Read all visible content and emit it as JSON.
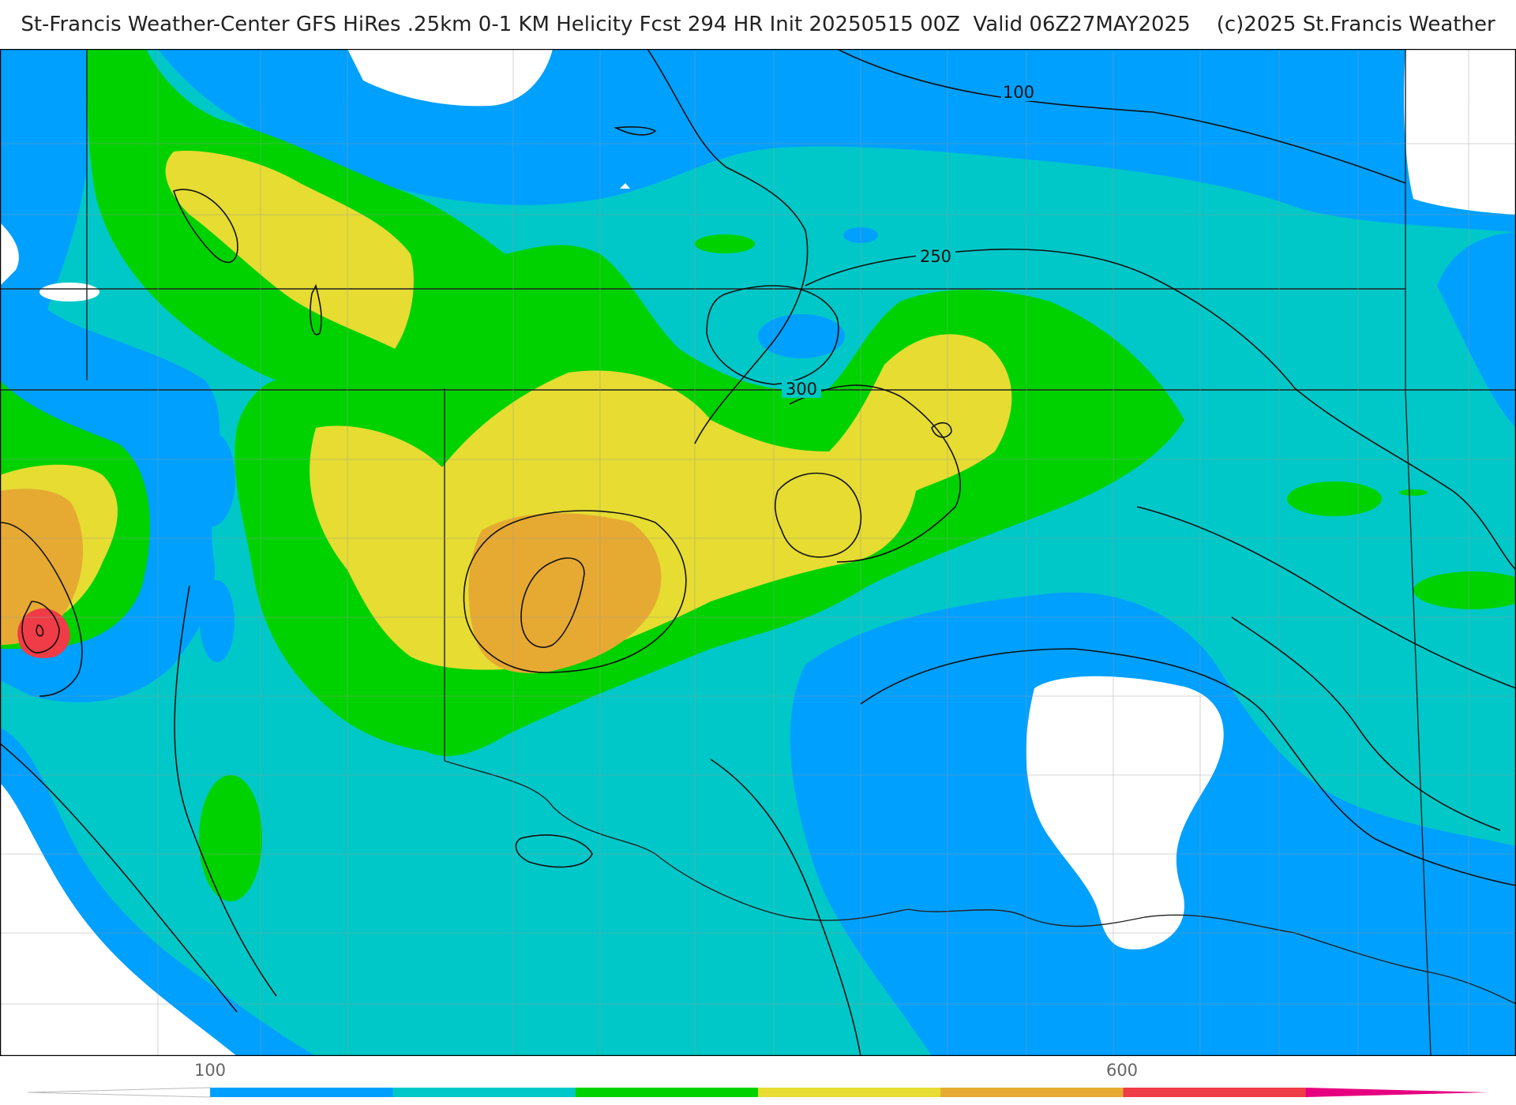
{
  "title": "St-Francis Weather-Center GFS HiRes .25km 0-1 KM Helicity Fcst 294 HR Init 20250515 00Z  Valid 06Z27MAY2025    (c)2025 St.Francis Weather",
  "map": {
    "contour_labels": [
      "100",
      "250",
      "300"
    ]
  },
  "legend": {
    "ticks": [
      "100",
      "600"
    ],
    "tick_values": [
      100,
      600
    ],
    "bins": [
      {
        "from": 50,
        "to": 100,
        "color": "#ffffff"
      },
      {
        "from": 100,
        "to": 200,
        "color": "#00a0ff"
      },
      {
        "from": 200,
        "to": 300,
        "color": "#00c8c8"
      },
      {
        "from": 300,
        "to": 400,
        "color": "#00d200"
      },
      {
        "from": 400,
        "to": 500,
        "color": "#e6dc32"
      },
      {
        "from": 500,
        "to": 600,
        "color": "#e6aa32"
      },
      {
        "from": 600,
        "to": 700,
        "color": "#f03c46"
      },
      {
        "from": 700,
        "to": 800,
        "color": "#e60080"
      }
    ]
  },
  "colors": {
    "white": "#ffffff",
    "blue": "#00a0ff",
    "teal": "#00c8c8",
    "green": "#00d200",
    "yellow": "#e6dc32",
    "orange": "#e6aa32",
    "red": "#f03c46",
    "magenta": "#e60080"
  }
}
